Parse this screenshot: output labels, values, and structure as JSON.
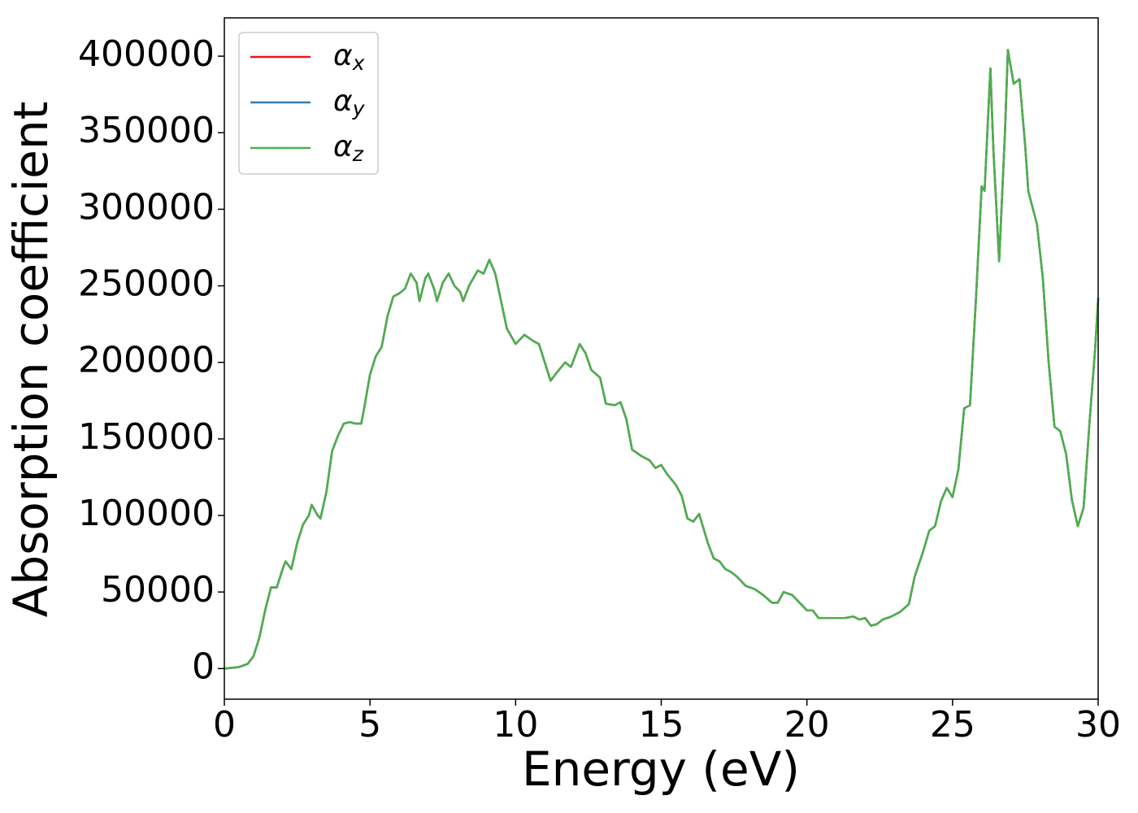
{
  "chart_data": {
    "type": "line",
    "x_label": "Energy (eV)",
    "y_label": "Absorption coefficient",
    "x": [
      0,
      0.5,
      0.8,
      1.0,
      1.2,
      1.4,
      1.6,
      1.8,
      2.0,
      2.1,
      2.3,
      2.5,
      2.7,
      2.9,
      3.0,
      3.2,
      3.3,
      3.5,
      3.7,
      3.9,
      4.1,
      4.3,
      4.5,
      4.7,
      4.8,
      5.0,
      5.2,
      5.4,
      5.6,
      5.8,
      6.0,
      6.2,
      6.4,
      6.6,
      6.7,
      6.9,
      7.0,
      7.2,
      7.3,
      7.5,
      7.7,
      7.9,
      8.1,
      8.2,
      8.4,
      8.7,
      8.9,
      9.1,
      9.3,
      9.5,
      9.7,
      10.0,
      10.3,
      10.6,
      10.8,
      11.0,
      11.2,
      11.4,
      11.7,
      11.9,
      12.2,
      12.4,
      12.6,
      12.9,
      13.1,
      13.4,
      13.6,
      13.8,
      14.0,
      14.3,
      14.6,
      14.8,
      15.0,
      15.2,
      15.5,
      15.7,
      15.9,
      16.1,
      16.3,
      16.6,
      16.8,
      17.0,
      17.2,
      17.4,
      17.6,
      17.9,
      18.2,
      18.5,
      18.8,
      19.0,
      19.2,
      19.5,
      19.7,
      20.0,
      20.2,
      20.4,
      20.7,
      21.0,
      21.3,
      21.6,
      21.8,
      22.0,
      22.2,
      22.4,
      22.6,
      22.9,
      23.2,
      23.5,
      23.7,
      24.0,
      24.2,
      24.4,
      24.6,
      24.8,
      25.0,
      25.2,
      25.4,
      25.6,
      25.8,
      26.0,
      26.1,
      26.3,
      26.4,
      26.6,
      26.8,
      26.9,
      27.1,
      27.3,
      27.5,
      27.6,
      27.9,
      28.1,
      28.3,
      28.5,
      28.7,
      28.9,
      29.1,
      29.3,
      29.5,
      29.7,
      29.9,
      30.0
    ],
    "series": [
      {
        "name": "αx",
        "color": "#e41a1c",
        "values": [
          0,
          1000,
          3000,
          8000,
          20000,
          38000,
          53000,
          53000,
          65000,
          70000,
          65000,
          82000,
          94000,
          100000,
          107000,
          100000,
          98000,
          115000,
          142000,
          152000,
          160000,
          161000,
          160000,
          160000,
          170000,
          192000,
          204000,
          210000,
          230000,
          243000,
          245000,
          248000,
          258000,
          252000,
          240000,
          255000,
          258000,
          248000,
          240000,
          252000,
          258000,
          250000,
          246000,
          240000,
          250000,
          260000,
          258000,
          267000,
          258000,
          240000,
          222000,
          212000,
          218000,
          214000,
          212000,
          200000,
          188000,
          193000,
          200000,
          197000,
          212000,
          206000,
          195000,
          190000,
          173000,
          172000,
          174000,
          163000,
          143000,
          139000,
          136000,
          131000,
          133000,
          127000,
          120000,
          113000,
          98000,
          96000,
          101000,
          82000,
          72000,
          70000,
          65000,
          63000,
          60000,
          54000,
          52000,
          48000,
          43000,
          43000,
          50000,
          48000,
          44000,
          38000,
          38000,
          33000,
          33000,
          33000,
          33000,
          34000,
          32000,
          33000,
          28000,
          29000,
          32000,
          34000,
          37000,
          42000,
          60000,
          77000,
          90000,
          93000,
          109000,
          118000,
          112000,
          130000,
          170000,
          172000,
          240000,
          315000,
          312000,
          392000,
          340000,
          266000,
          350000,
          404000,
          382000,
          385000,
          340000,
          312000,
          290000,
          255000,
          200000,
          158000,
          155000,
          140000,
          110000,
          93000,
          105000,
          160000,
          210000,
          242000
        ]
      },
      {
        "name": "αy",
        "color": "#377eb8",
        "values": [
          0,
          1000,
          3000,
          8000,
          20000,
          38000,
          53000,
          53000,
          65000,
          70000,
          65000,
          82000,
          94000,
          100000,
          107000,
          100000,
          98000,
          115000,
          142000,
          152000,
          160000,
          161000,
          160000,
          160000,
          170000,
          192000,
          204000,
          210000,
          230000,
          243000,
          245000,
          248000,
          258000,
          252000,
          240000,
          255000,
          258000,
          248000,
          240000,
          252000,
          258000,
          250000,
          246000,
          240000,
          250000,
          260000,
          258000,
          267000,
          258000,
          240000,
          222000,
          212000,
          218000,
          214000,
          212000,
          200000,
          188000,
          193000,
          200000,
          197000,
          212000,
          206000,
          195000,
          190000,
          173000,
          172000,
          174000,
          163000,
          143000,
          139000,
          136000,
          131000,
          133000,
          127000,
          120000,
          113000,
          98000,
          96000,
          101000,
          82000,
          72000,
          70000,
          65000,
          63000,
          60000,
          54000,
          52000,
          48000,
          43000,
          43000,
          50000,
          48000,
          44000,
          38000,
          38000,
          33000,
          33000,
          33000,
          33000,
          34000,
          32000,
          33000,
          28000,
          29000,
          32000,
          34000,
          37000,
          42000,
          60000,
          77000,
          90000,
          93000,
          109000,
          118000,
          112000,
          130000,
          170000,
          172000,
          240000,
          315000,
          312000,
          392000,
          340000,
          266000,
          350000,
          404000,
          382000,
          385000,
          340000,
          312000,
          290000,
          255000,
          200000,
          158000,
          155000,
          140000,
          110000,
          93000,
          105000,
          160000,
          210000,
          242000
        ]
      },
      {
        "name": "αz",
        "color": "#4daf4a",
        "values": [
          0,
          1000,
          3000,
          8000,
          20000,
          38000,
          53000,
          53000,
          65000,
          70000,
          65000,
          82000,
          94000,
          100000,
          107000,
          100000,
          98000,
          115000,
          142000,
          152000,
          160000,
          161000,
          160000,
          160000,
          170000,
          192000,
          204000,
          210000,
          230000,
          243000,
          245000,
          248000,
          258000,
          252000,
          240000,
          255000,
          258000,
          248000,
          240000,
          252000,
          258000,
          250000,
          246000,
          240000,
          250000,
          260000,
          258000,
          267000,
          258000,
          240000,
          222000,
          212000,
          218000,
          214000,
          212000,
          200000,
          188000,
          193000,
          200000,
          197000,
          212000,
          206000,
          195000,
          190000,
          173000,
          172000,
          174000,
          163000,
          143000,
          139000,
          136000,
          131000,
          133000,
          127000,
          120000,
          113000,
          98000,
          96000,
          101000,
          82000,
          72000,
          70000,
          65000,
          63000,
          60000,
          54000,
          52000,
          48000,
          43000,
          43000,
          50000,
          48000,
          44000,
          38000,
          38000,
          33000,
          33000,
          33000,
          33000,
          34000,
          32000,
          33000,
          28000,
          29000,
          32000,
          34000,
          37000,
          42000,
          60000,
          77000,
          90000,
          93000,
          109000,
          118000,
          112000,
          130000,
          170000,
          172000,
          240000,
          315000,
          312000,
          392000,
          340000,
          266000,
          350000,
          404000,
          382000,
          385000,
          340000,
          312000,
          290000,
          255000,
          200000,
          158000,
          155000,
          140000,
          110000,
          93000,
          105000,
          160000,
          210000,
          242000
        ]
      }
    ],
    "xlim": [
      0,
      30
    ],
    "xticks": [
      0,
      5,
      10,
      15,
      20,
      25,
      30
    ],
    "ylim": [
      -20000,
      425000
    ],
    "yticks": [
      0,
      50000,
      100000,
      150000,
      200000,
      250000,
      300000,
      350000,
      400000
    ],
    "grid": false,
    "legend": "upper left"
  }
}
